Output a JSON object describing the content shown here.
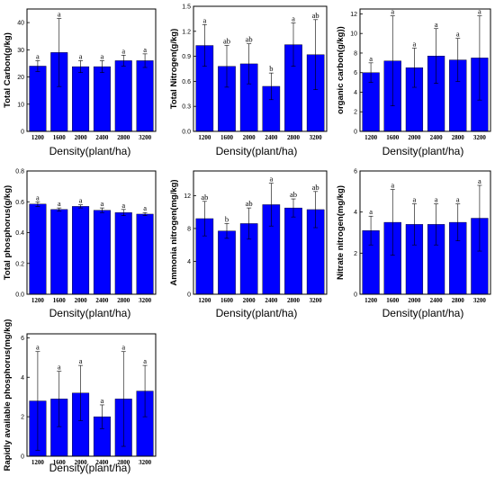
{
  "chart_data": [
    {
      "type": "bar",
      "categories": [
        "1200",
        "1600",
        "2000",
        "2400",
        "2800",
        "3200"
      ],
      "values": [
        24,
        29,
        23.8,
        23.8,
        26,
        26
      ],
      "error_upper": [
        26,
        41.5,
        26,
        26,
        28,
        28.5
      ],
      "significance": [
        "a",
        "a",
        "a",
        "a",
        "a",
        "a"
      ],
      "ylabel": "Total Carbon(g/kg)",
      "xlabel": "Density(plant/ha)",
      "ylim": [
        0,
        45
      ],
      "yticks": [
        "0",
        "10",
        "20",
        "30",
        "40"
      ],
      "ytick_values": [
        0,
        10,
        20,
        30,
        40
      ],
      "color": "#0000ff"
    },
    {
      "type": "bar",
      "categories": [
        "1200",
        "1600",
        "2000",
        "2400",
        "2800",
        "3200"
      ],
      "values": [
        1.03,
        0.78,
        0.81,
        0.54,
        1.04,
        0.92
      ],
      "error_upper": [
        1.28,
        1.03,
        1.05,
        0.7,
        1.3,
        1.34
      ],
      "significance": [
        "a",
        "ab",
        "ab",
        "b",
        "a",
        "ab"
      ],
      "ylabel": "Total Nitrogen(g/kg)",
      "xlabel": "Density(plant/ha)",
      "ylim": [
        0,
        1.5
      ],
      "yticks": [
        "0.0",
        "0.3",
        "0.6",
        "0.9",
        "1.2",
        "1.5"
      ],
      "ytick_values": [
        0,
        0.3,
        0.6,
        0.9,
        1.2,
        1.5
      ],
      "color": "#0000ff"
    },
    {
      "type": "bar",
      "categories": [
        "1200",
        "1600",
        "2000",
        "2400",
        "2800",
        "3200"
      ],
      "values": [
        6,
        7.2,
        6.5,
        7.7,
        7.3,
        7.5
      ],
      "error_upper": [
        7,
        11.8,
        8.5,
        10.5,
        9.5,
        11.8
      ],
      "significance": [
        "a",
        "a",
        "a",
        "a",
        "a",
        "a"
      ],
      "ylabel": "organic carbon(g/kg))",
      "xlabel": "Density(plant/ha)",
      "ylim": [
        0,
        12.5
      ],
      "yticks": [
        "0",
        "2",
        "4",
        "6",
        "8",
        "10",
        "12"
      ],
      "ytick_values": [
        0,
        2,
        4,
        6,
        8,
        10,
        12
      ],
      "color": "#0000ff"
    },
    {
      "type": "bar",
      "categories": [
        "1200",
        "1600",
        "2000",
        "2400",
        "2800",
        "3200"
      ],
      "values": [
        0.585,
        0.55,
        0.57,
        0.545,
        0.53,
        0.52
      ],
      "error_upper": [
        0.6,
        0.56,
        0.58,
        0.56,
        0.55,
        0.53
      ],
      "significance": [
        "a",
        "a",
        "a",
        "a",
        "a",
        "a"
      ],
      "ylabel": "Total phosphorus(g/kg)",
      "xlabel": "Density(plant/ha)",
      "ylim": [
        0,
        0.8
      ],
      "yticks": [
        "0.0",
        "0.2",
        "0.4",
        "0.6",
        "0.8"
      ],
      "ytick_values": [
        0,
        0.2,
        0.4,
        0.6,
        0.8
      ],
      "color": "#0000ff"
    },
    {
      "type": "bar",
      "categories": [
        "1200",
        "1600",
        "2000",
        "2400",
        "2800",
        "3200"
      ],
      "values": [
        9.2,
        7.7,
        8.6,
        10.9,
        10.5,
        10.3
      ],
      "error_upper": [
        11.3,
        8.6,
        10.5,
        13.5,
        11.6,
        12.5
      ],
      "significance": [
        "ab",
        "b",
        "ab",
        "a",
        "ab",
        "ab"
      ],
      "ylabel": "Ammonia nitrogen(mg/kg)",
      "xlabel": "Density(plant/ha)",
      "ylim": [
        0,
        15
      ],
      "yticks": [
        "0",
        "4",
        "8",
        "12"
      ],
      "ytick_values": [
        0,
        4,
        8,
        12
      ],
      "color": "#0000ff"
    },
    {
      "type": "bar",
      "categories": [
        "1200",
        "1600",
        "2000",
        "2400",
        "2800",
        "3200"
      ],
      "values": [
        3.1,
        3.5,
        3.4,
        3.4,
        3.5,
        3.7
      ],
      "error_upper": [
        3.8,
        5.1,
        4.4,
        4.4,
        4.4,
        5.3
      ],
      "significance": [
        "a",
        "a",
        "a",
        "a",
        "a",
        "a"
      ],
      "ylabel": "Nitrate nitrogen(mg/kg)",
      "xlabel": "Density(plant/ha)",
      "ylim": [
        0,
        6
      ],
      "yticks": [
        "0",
        "2",
        "4",
        "6"
      ],
      "ytick_values": [
        0,
        2,
        4,
        6
      ],
      "color": "#0000ff"
    },
    {
      "type": "bar",
      "categories": [
        "1200",
        "1600",
        "2000",
        "2400",
        "2800",
        "3200"
      ],
      "values": [
        2.8,
        2.9,
        3.2,
        2.0,
        2.9,
        3.3
      ],
      "error_upper": [
        5.3,
        4.3,
        4.6,
        2.6,
        5.3,
        4.6
      ],
      "significance": [
        "a",
        "a",
        "a",
        "a",
        "a",
        "a"
      ],
      "ylabel": "Rapidly available phosphorus(mg/kg)",
      "xlabel": "Density(plant/ha)",
      "ylim": [
        0,
        6.2
      ],
      "yticks": [
        "0",
        "2",
        "4",
        "6"
      ],
      "ytick_values": [
        0,
        2,
        4,
        6
      ],
      "color": "#0000ff"
    }
  ]
}
